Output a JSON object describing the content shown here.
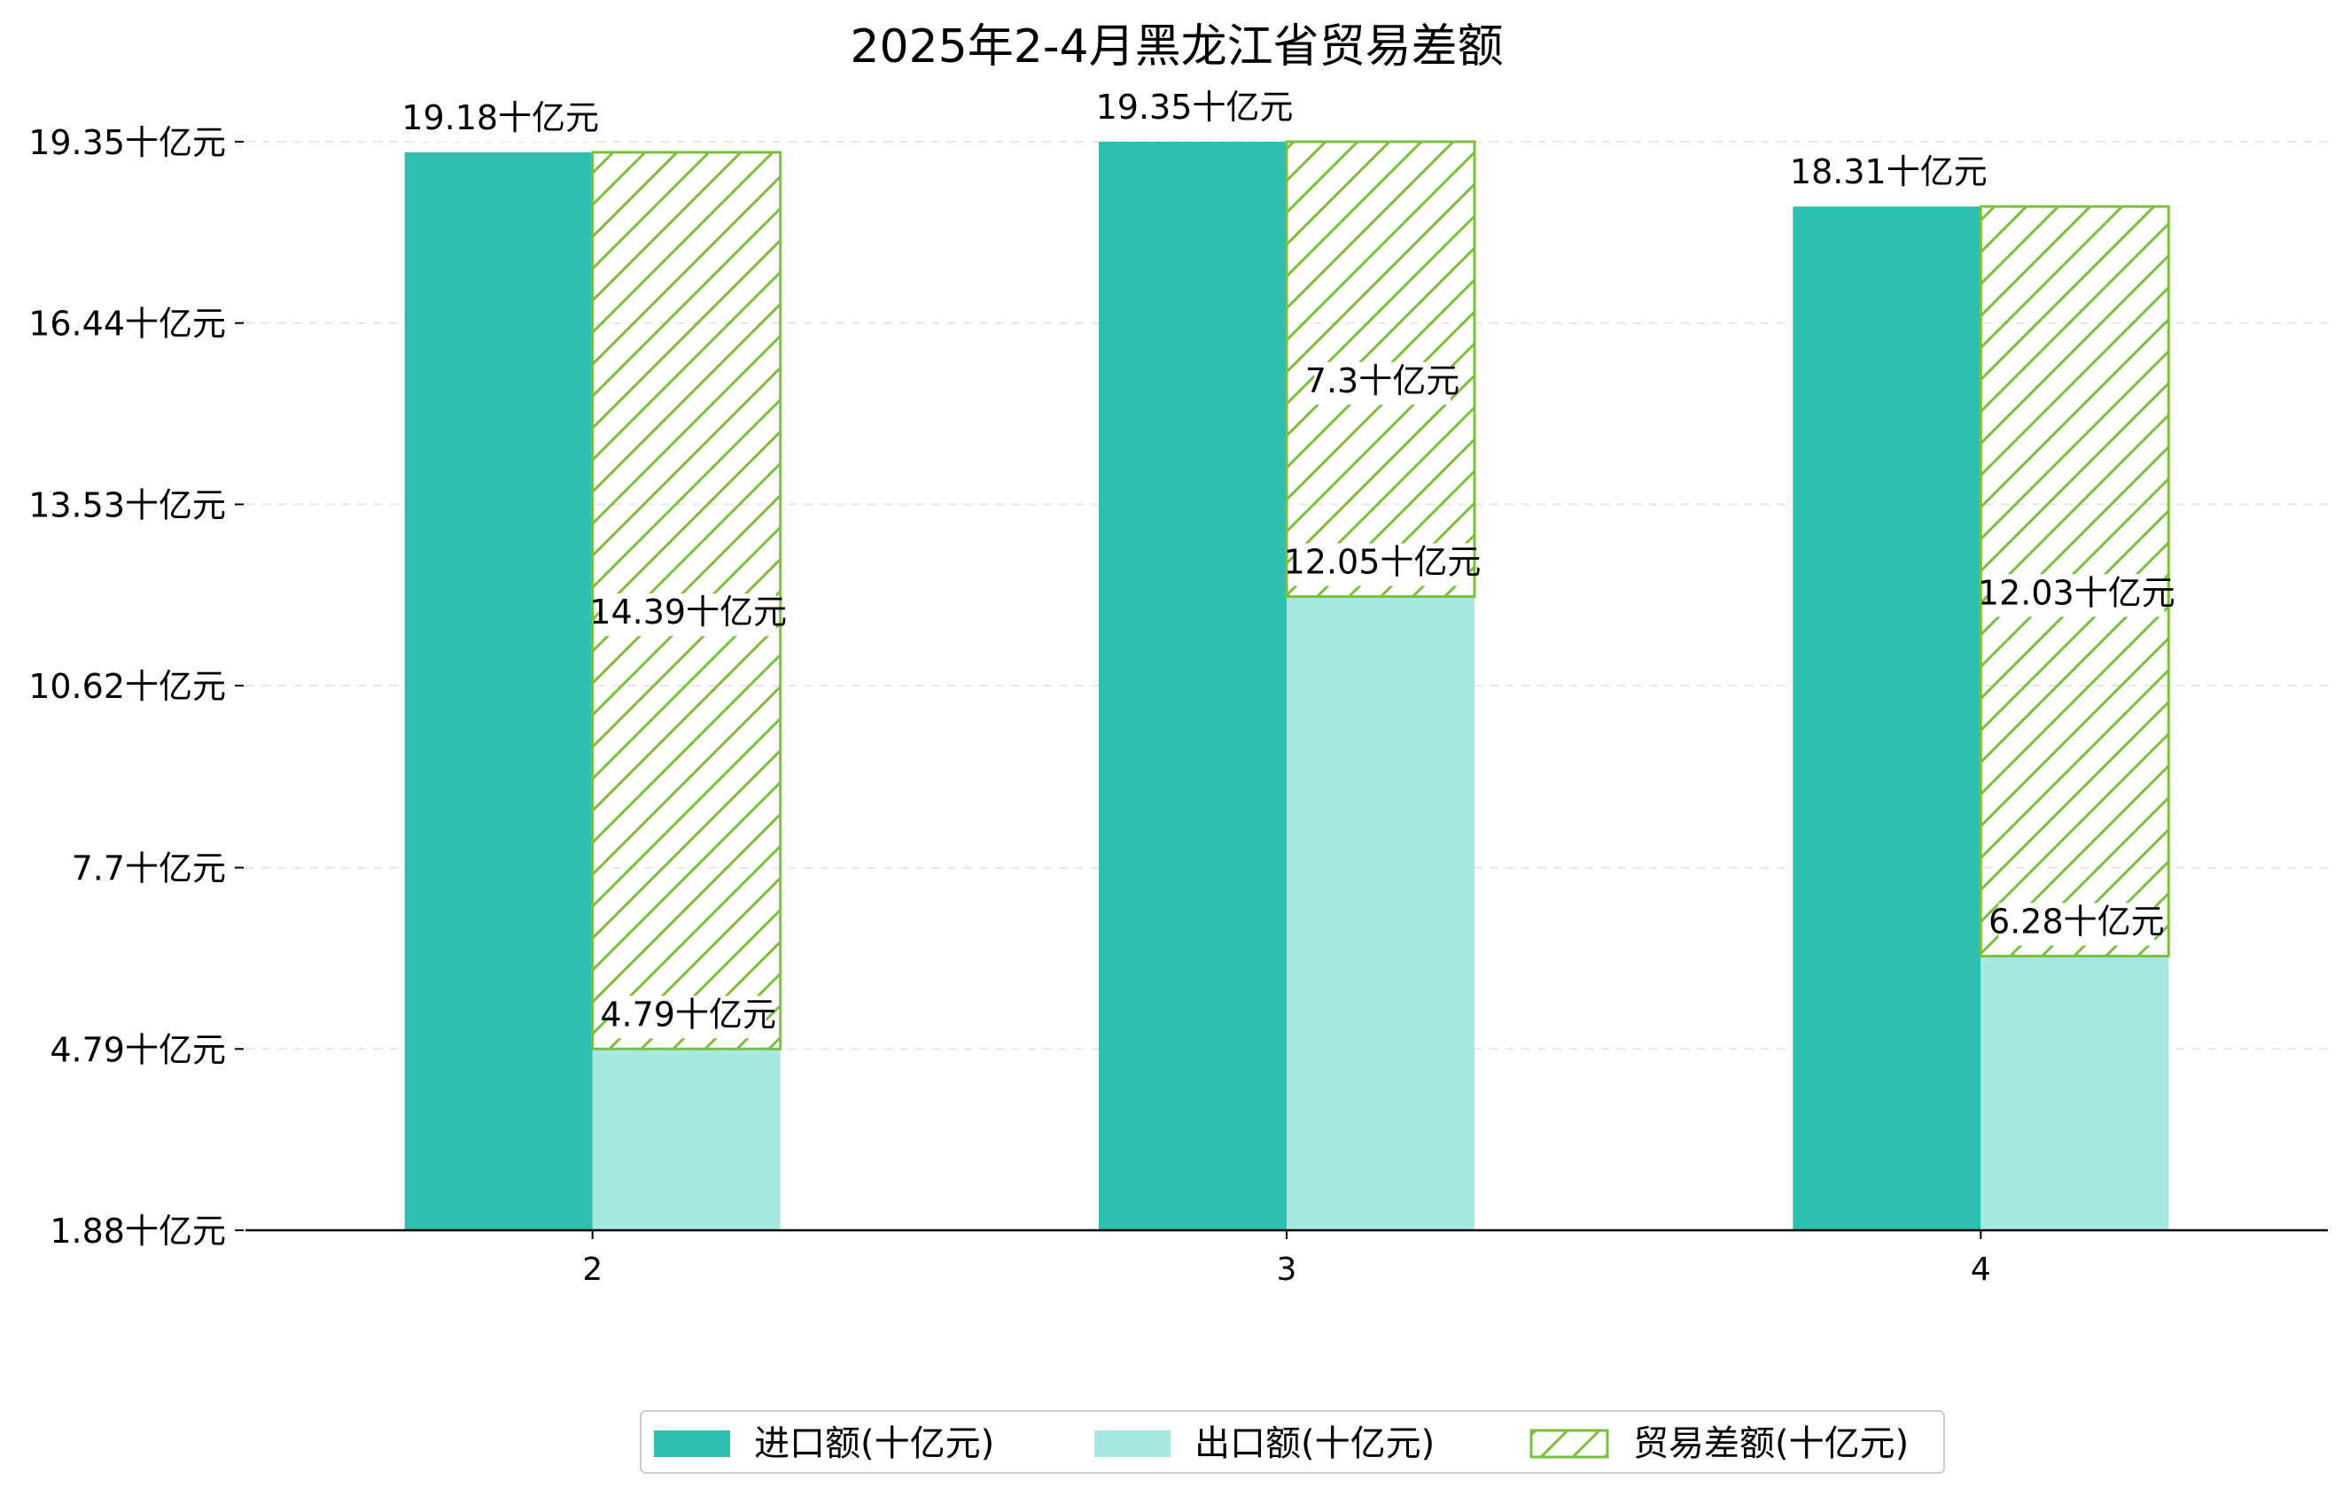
{
  "chart_data": {
    "type": "bar",
    "title": "2025年2-4月黑龙江省贸易差额",
    "xlabel": "",
    "ylabel": "",
    "categories": [
      "2",
      "3",
      "4"
    ],
    "series": [
      {
        "name": "进口额(十亿元)",
        "values": [
          19.18,
          19.35,
          18.31
        ],
        "labels": [
          "19.18十亿元",
          "19.35十亿元",
          "18.31十亿元"
        ],
        "color": "#2fbfb1"
      },
      {
        "name": "出口额(十亿元)",
        "values": [
          4.79,
          12.05,
          6.28
        ],
        "labels": [
          "4.79十亿元",
          "12.05十亿元",
          "6.28十亿元"
        ],
        "color": "#a8e8e2"
      },
      {
        "name": "贸易差额(十亿元)",
        "values": [
          14.39,
          7.3,
          12.03
        ],
        "labels": [
          "14.39十亿元",
          "7.3十亿元",
          "12.03十亿元"
        ],
        "color": "#7bbf3e",
        "hatch": "diagonal",
        "stacked_on": "出口额(十亿元)"
      }
    ],
    "yticks": [
      1.88,
      4.79,
      7.7,
      10.62,
      13.53,
      16.44,
      19.35
    ],
    "ytick_labels": [
      "1.88十亿元",
      "4.79十亿元",
      "7.7十亿元",
      "10.62十亿元",
      "13.53十亿元",
      "16.44十亿元",
      "19.35十亿元"
    ],
    "ylim": [
      1.88,
      19.35
    ],
    "grid": "horizontal-dashed",
    "legend_position": "bottom-center"
  }
}
